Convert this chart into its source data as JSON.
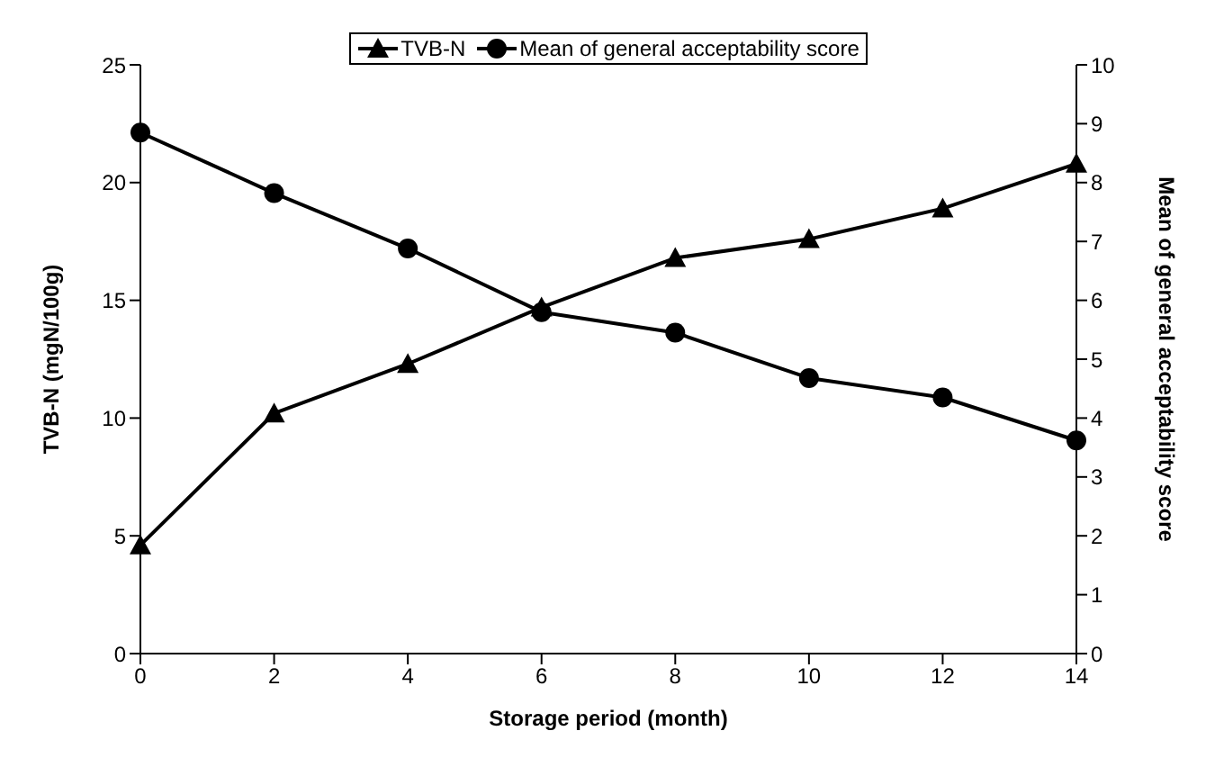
{
  "chart_data": {
    "type": "line",
    "xlabel": "Storage period (month)",
    "ylabel": "TVB-N (mgN/100g)",
    "y2label": "Mean of general acceptability score",
    "categories": [
      "0",
      "2",
      "4",
      "6",
      "8",
      "10",
      "12",
      "14"
    ],
    "series": [
      {
        "name": "TVB-N",
        "color": "#000000",
        "marker": "triangle",
        "values": [
          4.6,
          10.2,
          12.3,
          14.7,
          16.8,
          17.6,
          18.9,
          20.8
        ]
      },
      {
        "name": "Mean of general acceptability score",
        "color": "#000000",
        "marker": "circle",
        "axis": "y2",
        "values": [
          8.85,
          7.82,
          6.88,
          5.8,
          5.45,
          4.68,
          4.35,
          3.62
        ]
      }
    ],
    "ylim": [
      0,
      25
    ],
    "yticks": [
      0,
      5,
      10,
      15,
      20,
      25
    ],
    "y2lim": [
      0,
      10
    ],
    "y2ticks": [
      0,
      1,
      2,
      3,
      4,
      5,
      6,
      7,
      8,
      9,
      10
    ],
    "grid": false,
    "legend": "top",
    "line_style": "solid"
  }
}
